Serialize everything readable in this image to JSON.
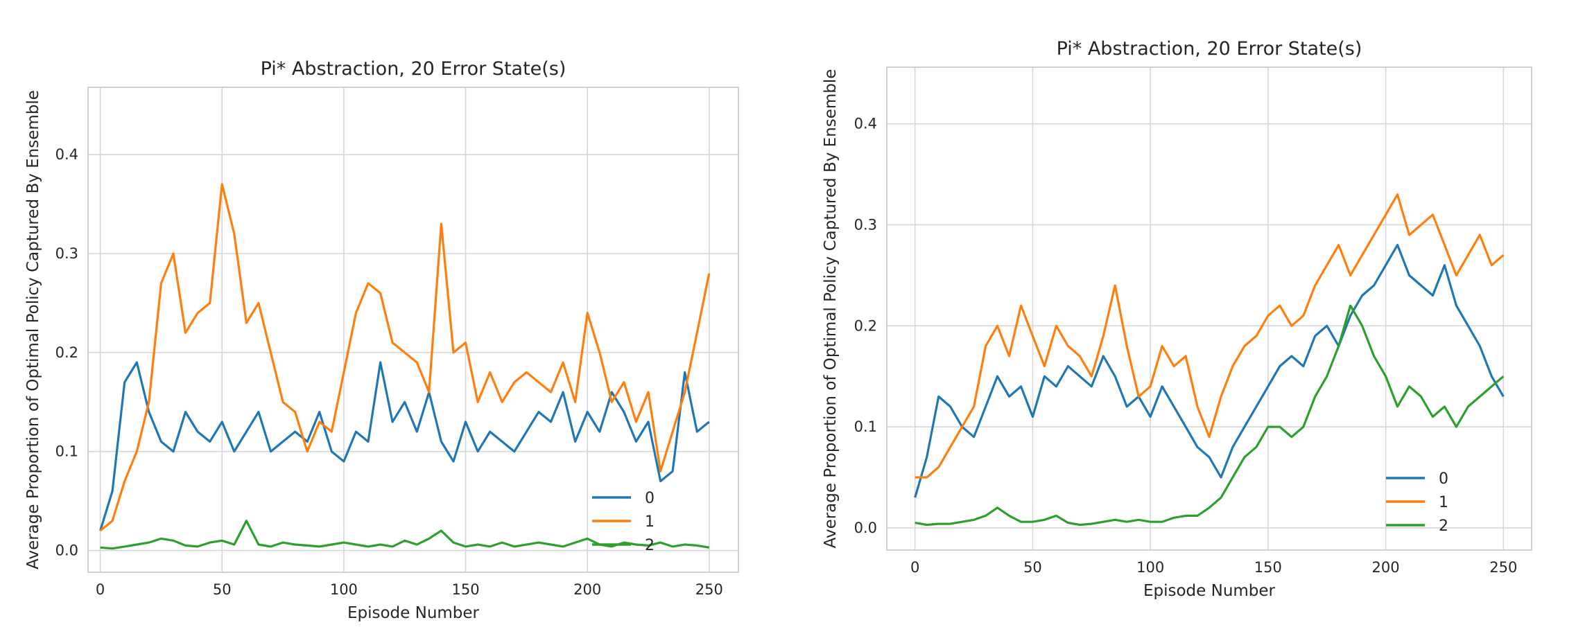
{
  "chart_data": [
    {
      "type": "line",
      "title": "Pi* Abstraction, 20 Error State(s)",
      "xlabel": "Episode Number",
      "ylabel": "Average Proportion of Optimal Policy Captured By Ensemble",
      "xlim": [
        -5,
        262
      ],
      "ylim": [
        -0.022,
        0.468
      ],
      "xticks": [
        0,
        50,
        100,
        150,
        200,
        250
      ],
      "yticks": [
        0.0,
        0.1,
        0.2,
        0.3,
        0.4
      ],
      "ytick_labels": [
        "0.0",
        "0.1",
        "0.2",
        "0.3",
        "0.4"
      ],
      "grid": true,
      "legend_position": "lower right",
      "series": [
        {
          "name": "0",
          "color": "#1f77b4",
          "x": [
            0,
            5,
            10,
            15,
            20,
            25,
            30,
            35,
            40,
            45,
            50,
            55,
            60,
            65,
            70,
            75,
            80,
            85,
            90,
            95,
            100,
            105,
            110,
            115,
            120,
            125,
            130,
            135,
            140,
            145,
            150,
            155,
            160,
            165,
            170,
            175,
            180,
            185,
            190,
            195,
            200,
            205,
            210,
            215,
            220,
            225,
            230,
            235,
            240,
            245,
            250
          ],
          "y": [
            0.02,
            0.06,
            0.17,
            0.19,
            0.14,
            0.11,
            0.1,
            0.14,
            0.12,
            0.11,
            0.13,
            0.1,
            0.12,
            0.14,
            0.1,
            0.11,
            0.12,
            0.11,
            0.14,
            0.1,
            0.09,
            0.12,
            0.11,
            0.19,
            0.13,
            0.15,
            0.12,
            0.16,
            0.11,
            0.09,
            0.13,
            0.1,
            0.12,
            0.11,
            0.1,
            0.12,
            0.14,
            0.13,
            0.16,
            0.11,
            0.14,
            0.12,
            0.16,
            0.14,
            0.11,
            0.13,
            0.07,
            0.08,
            0.18,
            0.12,
            0.13
          ]
        },
        {
          "name": "1",
          "color": "#ff7f0e",
          "x": [
            0,
            5,
            10,
            15,
            20,
            25,
            30,
            35,
            40,
            45,
            50,
            55,
            60,
            65,
            70,
            75,
            80,
            85,
            90,
            95,
            100,
            105,
            110,
            115,
            120,
            125,
            130,
            135,
            140,
            145,
            150,
            155,
            160,
            165,
            170,
            175,
            180,
            185,
            190,
            195,
            200,
            205,
            210,
            215,
            220,
            225,
            230,
            235,
            240,
            245,
            250
          ],
          "y": [
            0.02,
            0.03,
            0.07,
            0.1,
            0.15,
            0.27,
            0.3,
            0.22,
            0.24,
            0.25,
            0.37,
            0.32,
            0.23,
            0.25,
            0.2,
            0.15,
            0.14,
            0.1,
            0.13,
            0.12,
            0.18,
            0.24,
            0.27,
            0.26,
            0.21,
            0.2,
            0.19,
            0.16,
            0.33,
            0.2,
            0.21,
            0.15,
            0.18,
            0.15,
            0.17,
            0.18,
            0.17,
            0.16,
            0.19,
            0.15,
            0.24,
            0.2,
            0.15,
            0.17,
            0.13,
            0.16,
            0.08,
            0.12,
            0.16,
            0.22,
            0.28
          ]
        },
        {
          "name": "2",
          "color": "#2ca02c",
          "x": [
            0,
            5,
            10,
            15,
            20,
            25,
            30,
            35,
            40,
            45,
            50,
            55,
            60,
            65,
            70,
            75,
            80,
            85,
            90,
            95,
            100,
            105,
            110,
            115,
            120,
            125,
            130,
            135,
            140,
            145,
            150,
            155,
            160,
            165,
            170,
            175,
            180,
            185,
            190,
            195,
            200,
            205,
            210,
            215,
            220,
            225,
            230,
            235,
            240,
            245,
            250
          ],
          "y": [
            0.003,
            0.002,
            0.004,
            0.006,
            0.008,
            0.012,
            0.01,
            0.005,
            0.004,
            0.008,
            0.01,
            0.006,
            0.03,
            0.006,
            0.004,
            0.008,
            0.006,
            0.005,
            0.004,
            0.006,
            0.008,
            0.006,
            0.004,
            0.006,
            0.004,
            0.01,
            0.006,
            0.012,
            0.02,
            0.008,
            0.004,
            0.006,
            0.004,
            0.008,
            0.004,
            0.006,
            0.008,
            0.006,
            0.004,
            0.008,
            0.012,
            0.006,
            0.004,
            0.008,
            0.006,
            0.005,
            0.008,
            0.004,
            0.006,
            0.005,
            0.003
          ]
        }
      ]
    },
    {
      "type": "line",
      "title": "Pi* Abstraction, 20 Error State(s)",
      "xlabel": "Episode Number",
      "ylabel": "Average Proportion of Optimal Policy Captured By Ensemble",
      "xlim": [
        -12,
        262
      ],
      "ylim": [
        -0.022,
        0.456
      ],
      "xticks": [
        0,
        50,
        100,
        150,
        200,
        250
      ],
      "yticks": [
        0.0,
        0.1,
        0.2,
        0.3,
        0.4
      ],
      "ytick_labels": [
        "0.0",
        "0.1",
        "0.2",
        "0.3",
        "0.4"
      ],
      "grid": true,
      "legend_position": "lower right",
      "series": [
        {
          "name": "0",
          "color": "#1f77b4",
          "x": [
            0,
            5,
            10,
            15,
            20,
            25,
            30,
            35,
            40,
            45,
            50,
            55,
            60,
            65,
            70,
            75,
            80,
            85,
            90,
            95,
            100,
            105,
            110,
            115,
            120,
            125,
            130,
            135,
            140,
            145,
            150,
            155,
            160,
            165,
            170,
            175,
            180,
            185,
            190,
            195,
            200,
            205,
            210,
            215,
            220,
            225,
            230,
            235,
            240,
            245,
            250
          ],
          "y": [
            0.03,
            0.07,
            0.13,
            0.12,
            0.1,
            0.09,
            0.12,
            0.15,
            0.13,
            0.14,
            0.11,
            0.15,
            0.14,
            0.16,
            0.15,
            0.14,
            0.17,
            0.15,
            0.12,
            0.13,
            0.11,
            0.14,
            0.12,
            0.1,
            0.08,
            0.07,
            0.05,
            0.08,
            0.1,
            0.12,
            0.14,
            0.16,
            0.17,
            0.16,
            0.19,
            0.2,
            0.18,
            0.21,
            0.23,
            0.24,
            0.26,
            0.28,
            0.25,
            0.24,
            0.23,
            0.26,
            0.22,
            0.2,
            0.18,
            0.15,
            0.13
          ]
        },
        {
          "name": "1",
          "color": "#ff7f0e",
          "x": [
            0,
            5,
            10,
            15,
            20,
            25,
            30,
            35,
            40,
            45,
            50,
            55,
            60,
            65,
            70,
            75,
            80,
            85,
            90,
            95,
            100,
            105,
            110,
            115,
            120,
            125,
            130,
            135,
            140,
            145,
            150,
            155,
            160,
            165,
            170,
            175,
            180,
            185,
            190,
            195,
            200,
            205,
            210,
            215,
            220,
            225,
            230,
            235,
            240,
            245,
            250
          ],
          "y": [
            0.05,
            0.05,
            0.06,
            0.08,
            0.1,
            0.12,
            0.18,
            0.2,
            0.17,
            0.22,
            0.19,
            0.16,
            0.2,
            0.18,
            0.17,
            0.15,
            0.19,
            0.24,
            0.18,
            0.13,
            0.14,
            0.18,
            0.16,
            0.17,
            0.12,
            0.09,
            0.13,
            0.16,
            0.18,
            0.19,
            0.21,
            0.22,
            0.2,
            0.21,
            0.24,
            0.26,
            0.28,
            0.25,
            0.27,
            0.29,
            0.31,
            0.33,
            0.29,
            0.3,
            0.31,
            0.28,
            0.25,
            0.27,
            0.29,
            0.26,
            0.27
          ]
        },
        {
          "name": "2",
          "color": "#2ca02c",
          "x": [
            0,
            5,
            10,
            15,
            20,
            25,
            30,
            35,
            40,
            45,
            50,
            55,
            60,
            65,
            70,
            75,
            80,
            85,
            90,
            95,
            100,
            105,
            110,
            115,
            120,
            125,
            130,
            135,
            140,
            145,
            150,
            155,
            160,
            165,
            170,
            175,
            180,
            185,
            190,
            195,
            200,
            205,
            210,
            215,
            220,
            225,
            230,
            235,
            240,
            245,
            250
          ],
          "y": [
            0.005,
            0.003,
            0.004,
            0.004,
            0.006,
            0.008,
            0.012,
            0.02,
            0.012,
            0.006,
            0.006,
            0.008,
            0.012,
            0.005,
            0.003,
            0.004,
            0.006,
            0.008,
            0.006,
            0.008,
            0.006,
            0.006,
            0.01,
            0.012,
            0.012,
            0.02,
            0.03,
            0.05,
            0.07,
            0.08,
            0.1,
            0.1,
            0.09,
            0.1,
            0.13,
            0.15,
            0.18,
            0.22,
            0.2,
            0.17,
            0.15,
            0.12,
            0.14,
            0.13,
            0.11,
            0.12,
            0.1,
            0.12,
            0.13,
            0.14,
            0.15
          ]
        }
      ]
    }
  ]
}
